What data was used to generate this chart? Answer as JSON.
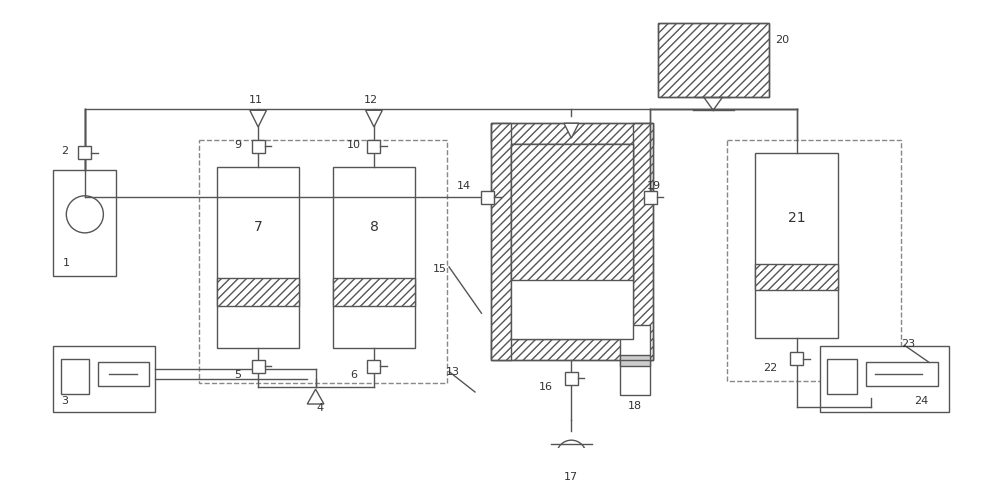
{
  "bg_color": "#ffffff",
  "lc": "#555555",
  "lw": 1.0,
  "fig_w": 10.0,
  "fig_h": 4.8,
  "dpi": 100
}
